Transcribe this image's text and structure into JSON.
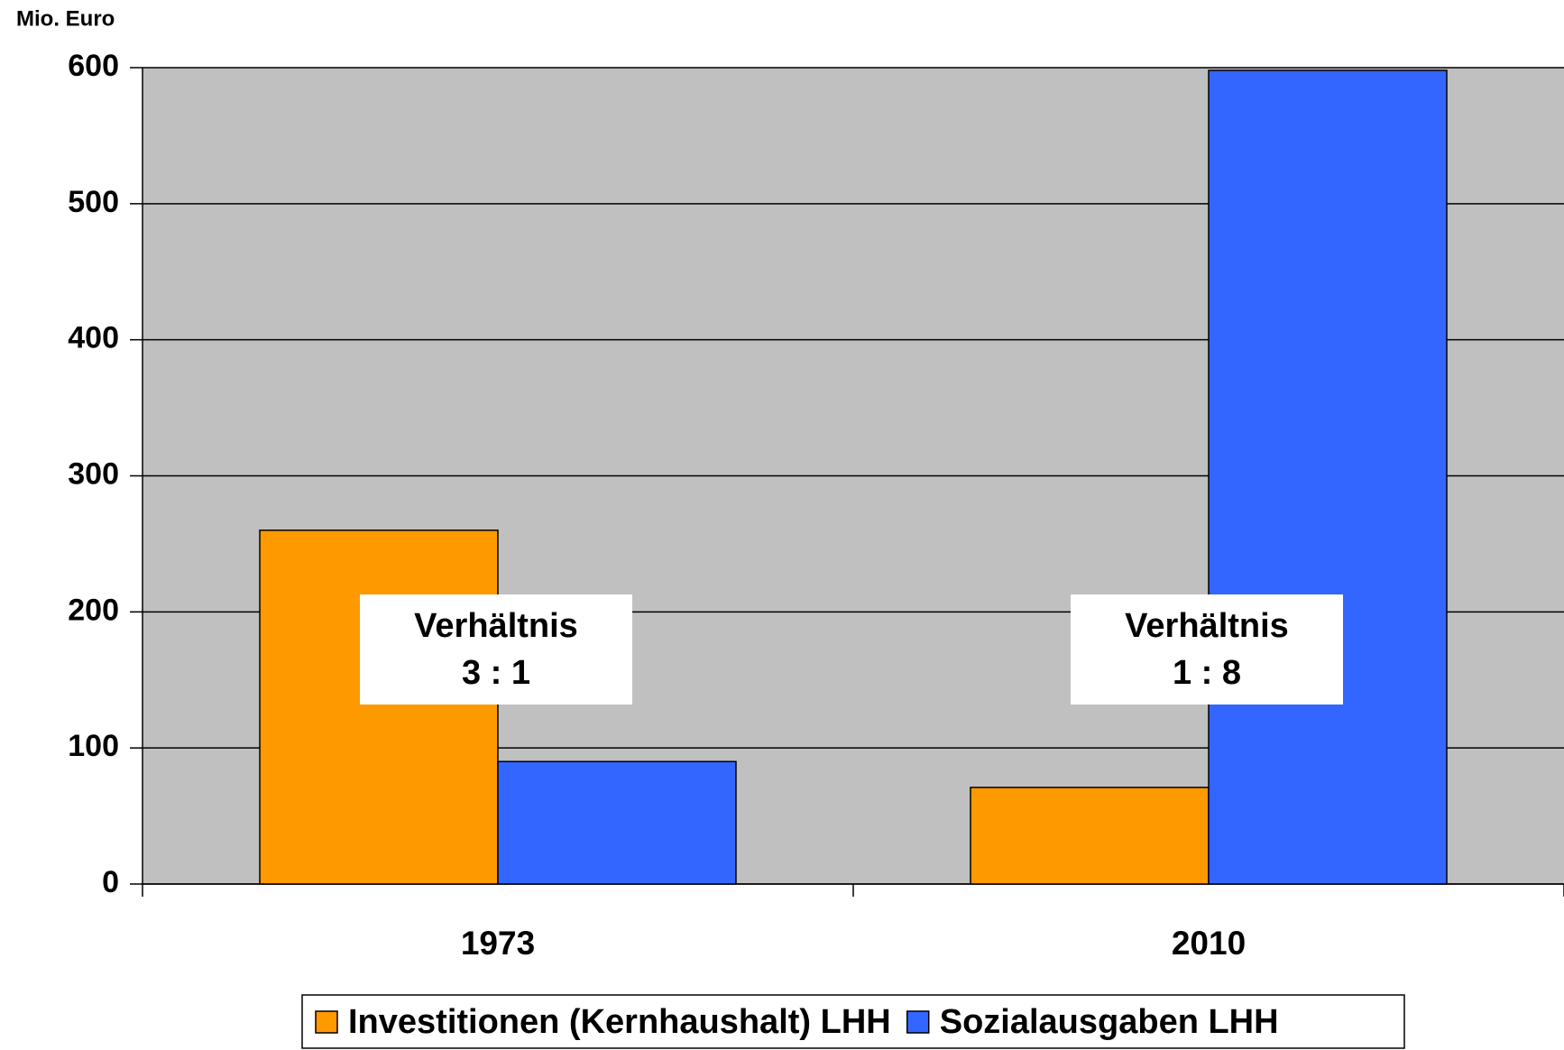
{
  "chart_data": {
    "type": "bar",
    "y_axis_label": "Mio. Euro",
    "categories": [
      "1973",
      "2010"
    ],
    "series": [
      {
        "name": "Investitionen (Kernhaushalt) LHH",
        "color": "#ff9900",
        "values": [
          260,
          71
        ]
      },
      {
        "name": "Sozialausgaben LHH",
        "color": "#3366ff",
        "values": [
          90,
          598
        ]
      }
    ],
    "ylim": [
      0,
      600
    ],
    "yticks": [
      0,
      100,
      200,
      300,
      400,
      500,
      600
    ],
    "grid": true,
    "annotations": [
      {
        "lines": [
          "Verhältnis",
          "3 : 1"
        ]
      },
      {
        "lines": [
          "Verhältnis",
          "1 : 8"
        ]
      }
    ]
  }
}
